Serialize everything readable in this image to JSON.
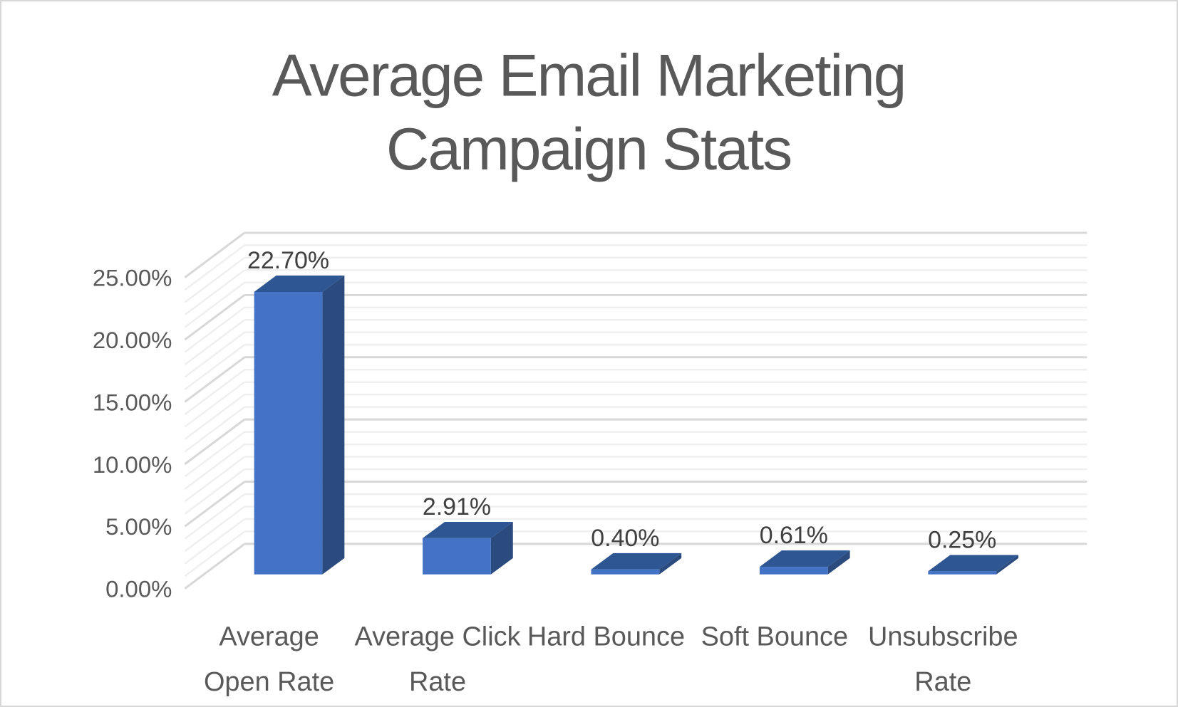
{
  "chart_data": {
    "type": "bar",
    "projection": "3d-oblique",
    "title": "Average Email Marketing Campaign Stats",
    "title_lines": [
      "Average Email Marketing",
      "Campaign Stats"
    ],
    "categories": [
      "Average Open Rate",
      "Average Click Rate",
      "Hard Bounce",
      "Soft Bounce",
      "Unsubscribe Rate"
    ],
    "category_label_lines": [
      [
        "Average",
        "Open Rate"
      ],
      [
        "Average Click",
        "Rate"
      ],
      [
        "Hard Bounce"
      ],
      [
        "Soft Bounce"
      ],
      [
        "Unsubscribe",
        "Rate"
      ]
    ],
    "values": [
      22.7,
      2.91,
      0.4,
      0.61,
      0.25
    ],
    "data_labels": [
      "22.70%",
      "2.91%",
      "0.40%",
      "0.61%",
      "0.25%"
    ],
    "xlabel": "",
    "ylabel": "",
    "y_axis": {
      "min": 0,
      "max": 25,
      "major_step": 5,
      "minor_step": 1,
      "tick_labels": [
        "0.00%",
        "5.00%",
        "10.00%",
        "15.00%",
        "20.00%",
        "25.00%"
      ],
      "format": "percent"
    },
    "legend": "none",
    "grid": {
      "major": true,
      "minor": true
    },
    "colors": {
      "bar_front": "#4472c4",
      "bar_top": "#2d5693",
      "bar_side": "#2b4a7d",
      "gridline_major": "#d8d8d8",
      "gridline_minor": "#efefef",
      "title_text": "#595959",
      "axis_text": "#595959",
      "data_label_text": "#404040",
      "background": "#ffffff",
      "frame_border": "#d7d7d7"
    }
  }
}
